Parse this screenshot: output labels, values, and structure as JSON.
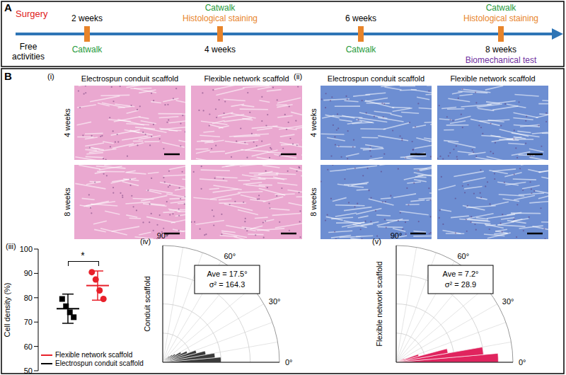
{
  "panel_a": {
    "label": "A",
    "timeline": {
      "color": "#2e75b6",
      "start": {
        "text": "Surgery",
        "color": "#e02020"
      },
      "note": {
        "text": "Free activities",
        "color": "#000000"
      },
      "events": [
        {
          "above": [
            {
              "text": "2 weeks",
              "color": "#000000"
            }
          ],
          "below": [
            {
              "text": "Catwalk",
              "color": "#1f9a3a"
            }
          ]
        },
        {
          "above": [
            {
              "text": "Catwalk",
              "color": "#1f9a3a"
            },
            {
              "text": "Histological staining",
              "color": "#e8842a"
            }
          ],
          "below": [
            {
              "text": "4 weeks",
              "color": "#000000"
            }
          ]
        },
        {
          "above": [
            {
              "text": "6 weeks",
              "color": "#000000"
            }
          ],
          "below": [
            {
              "text": "Catwalk",
              "color": "#1f9a3a"
            }
          ]
        },
        {
          "above": [
            {
              "text": "Catwalk",
              "color": "#1f9a3a"
            },
            {
              "text": "Histological staining",
              "color": "#e8842a"
            }
          ],
          "below": [
            {
              "text": "8 weeks",
              "color": "#000000"
            },
            {
              "text": "Biomechanical test",
              "color": "#7030a0"
            }
          ]
        }
      ]
    }
  },
  "panel_b": {
    "label": "B",
    "histology": [
      {
        "label": "(i)",
        "columns": [
          "Electrospun conduit scaffold",
          "Flexible network scaffold"
        ],
        "rows": [
          "4 weeks",
          "8 weeks"
        ],
        "color": "#eaa8d0"
      },
      {
        "label": "(ii)",
        "columns": [
          "Electrospun conduit scaffold",
          "Flexible network scaffold"
        ],
        "rows": [
          "4 weeks",
          "8 weeks"
        ],
        "color": "#6d8ed2"
      }
    ]
  },
  "chart_data": [
    {
      "label": "(iii)",
      "type": "scatter",
      "ylabel": "Cell density (%)",
      "ylim": [
        50,
        100
      ],
      "yticks": [
        50,
        60,
        70,
        80,
        90,
        100
      ],
      "tick_labels": "y",
      "legend": "bottom",
      "series": [
        {
          "name": "Electrospun conduit scaffold",
          "color": "#000000",
          "marker": "square",
          "values": [
            79.5,
            76.5,
            74,
            72
          ],
          "mean": 75.5,
          "sd": 6
        },
        {
          "name": "Flexible network scaffold",
          "color": "#e8202a",
          "marker": "circle",
          "values": [
            90.5,
            87.5,
            83,
            79.5
          ],
          "mean": 85,
          "sd": 6
        }
      ],
      "significance": {
        "label": "*",
        "between": [
          "Electrospun conduit scaffold",
          "Flexible network scaffold"
        ]
      }
    },
    {
      "label": "(iv)",
      "type": "polar_histogram",
      "ylabel": "Conduit scaffold",
      "bins": [
        0,
        5,
        10,
        15,
        20,
        25,
        30,
        35,
        40,
        45,
        50,
        55,
        60,
        65,
        70,
        75,
        80,
        85,
        90
      ],
      "values": [
        20,
        18,
        15,
        12,
        9,
        7,
        5,
        4,
        3,
        2,
        1,
        1,
        0,
        0,
        0,
        0,
        0,
        0
      ],
      "color": "#3a3a3a",
      "rlim": [
        0,
        40
      ],
      "angle_lim": [
        0,
        90
      ],
      "angle_ticks": [
        {
          "value": 0,
          "label": "0°"
        },
        {
          "value": 30,
          "label": "30°"
        },
        {
          "value": 60,
          "label": "60°"
        },
        {
          "value": 90,
          "label": "90°"
        }
      ],
      "annotations": [
        "Ave = 17.5°",
        "σ² = 164.3"
      ],
      "grid": true
    },
    {
      "label": "(v)",
      "type": "polar_histogram",
      "ylabel": "Flexible network scaffold",
      "bins": [
        0,
        5,
        10,
        15,
        20,
        25,
        30,
        35,
        40,
        45,
        50,
        55,
        60,
        65,
        70,
        75,
        80,
        85,
        90
      ],
      "values": [
        35,
        30,
        18,
        8,
        3,
        1,
        0,
        0,
        0,
        0,
        0,
        0,
        0,
        0,
        0,
        0,
        0,
        0
      ],
      "color": "#e0245e",
      "rlim": [
        0,
        40
      ],
      "angle_lim": [
        0,
        90
      ],
      "angle_ticks": [
        {
          "value": 0,
          "label": "0°"
        },
        {
          "value": 30,
          "label": "30°"
        },
        {
          "value": 60,
          "label": "60°"
        },
        {
          "value": 90,
          "label": "90°"
        }
      ],
      "annotations": [
        "Ave = 7.2°",
        "σ² = 28.9"
      ],
      "grid": true
    }
  ]
}
